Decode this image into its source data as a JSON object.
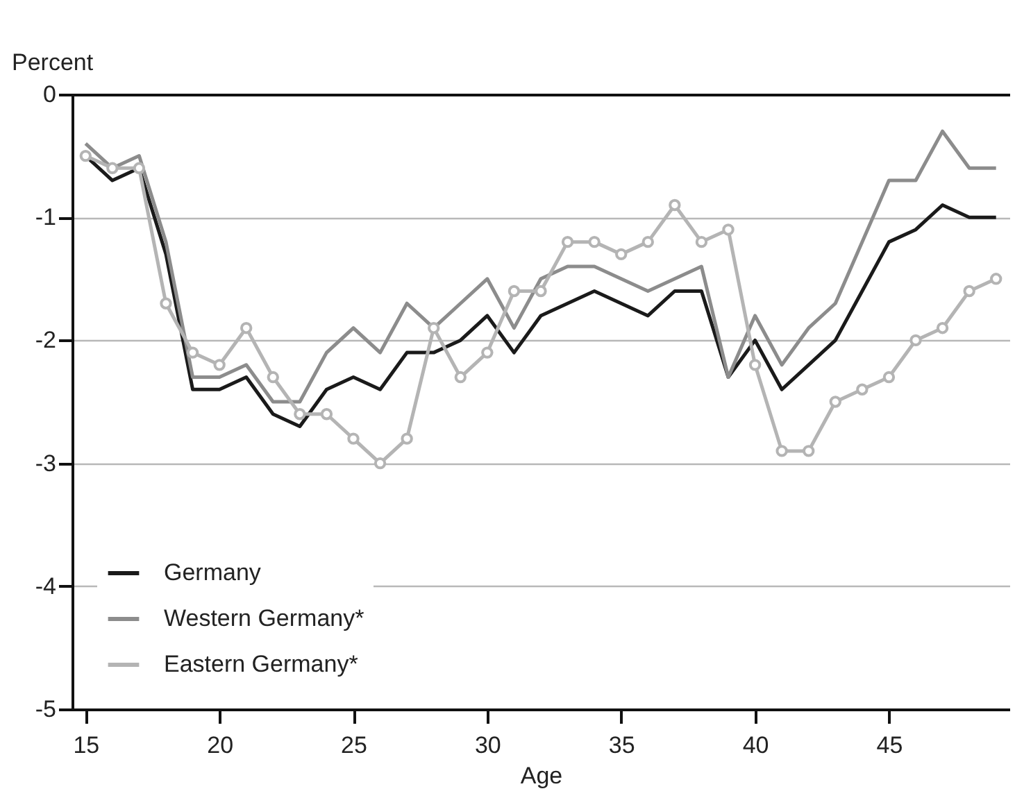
{
  "chart_data": {
    "type": "line",
    "ylabel": "Percent",
    "xlabel": "Age",
    "x": [
      15,
      16,
      17,
      18,
      19,
      20,
      21,
      22,
      23,
      24,
      25,
      26,
      27,
      28,
      29,
      30,
      31,
      32,
      33,
      34,
      35,
      36,
      37,
      38,
      39,
      40,
      41,
      42,
      43,
      44,
      45,
      46,
      47,
      48,
      49
    ],
    "series": [
      {
        "name": "Germany",
        "color": "#1a1a1a",
        "values": [
          -0.5,
          -0.7,
          -0.6,
          -1.3,
          -2.4,
          -2.4,
          -2.3,
          -2.6,
          -2.7,
          -2.4,
          -2.3,
          -2.4,
          -2.1,
          -2.1,
          -2.0,
          -1.8,
          -2.1,
          -1.8,
          -1.7,
          -1.6,
          -1.7,
          -1.8,
          -1.6,
          -1.6,
          -2.3,
          -2.0,
          -2.4,
          -2.2,
          -2.0,
          -1.6,
          -1.2,
          -1.1,
          -0.9,
          -1.0,
          -1.0
        ]
      },
      {
        "name": "Western Germany*",
        "color": "#8c8c8c",
        "values": [
          -0.4,
          -0.6,
          -0.5,
          -1.2,
          -2.3,
          -2.3,
          -2.2,
          -2.5,
          -2.5,
          -2.1,
          -1.9,
          -2.1,
          -1.7,
          -1.9,
          -1.7,
          -1.5,
          -1.9,
          -1.5,
          -1.4,
          -1.4,
          -1.5,
          -1.6,
          -1.5,
          -1.4,
          -2.3,
          -1.8,
          -2.2,
          -1.9,
          -1.7,
          -1.2,
          -0.7,
          -0.7,
          -0.3,
          -0.6,
          -0.6
        ]
      },
      {
        "name": "Eastern Germany*",
        "color": "#b4b4b4",
        "marker": "circle",
        "values": [
          -0.5,
          -0.6,
          -0.6,
          -1.7,
          -2.1,
          -2.2,
          -1.9,
          -2.3,
          -2.6,
          -2.6,
          -2.8,
          -3.0,
          -2.8,
          -1.9,
          -2.3,
          -2.1,
          -1.6,
          -1.6,
          -1.2,
          -1.2,
          -1.3,
          -1.2,
          -0.9,
          -1.2,
          -1.1,
          -2.2,
          -2.9,
          -2.9,
          -2.5,
          -2.4,
          -2.3,
          -2.0,
          -1.9,
          -1.6,
          -1.5
        ]
      }
    ],
    "xlim": [
      14.5,
      49.5
    ],
    "xticks": [
      15,
      20,
      25,
      30,
      35,
      40,
      45
    ],
    "ylim": [
      -5,
      0
    ],
    "yticks": [
      0,
      -1,
      -2,
      -3,
      -4,
      -5
    ],
    "grid": "y",
    "legend": "bottom left",
    "line_style": "solid"
  }
}
